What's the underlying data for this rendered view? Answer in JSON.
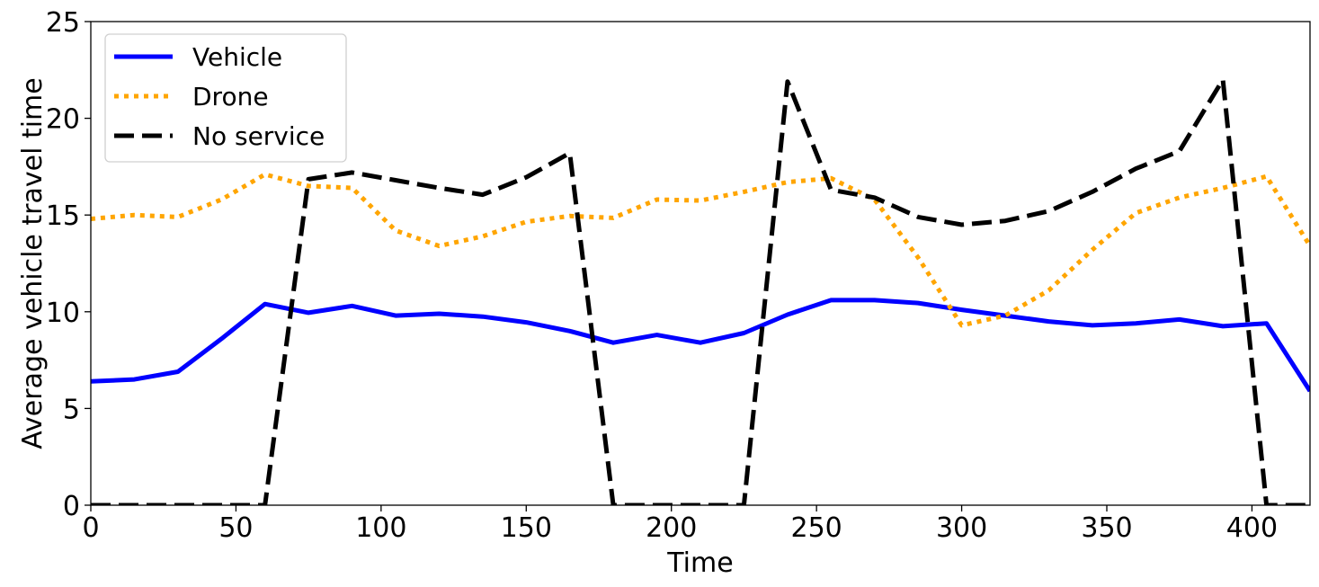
{
  "chart_data": {
    "type": "line",
    "title": "",
    "xlabel": "Time",
    "ylabel": "Average vehicle travel time",
    "xlim": [
      0,
      420
    ],
    "ylim": [
      0,
      25
    ],
    "xticks": [
      0,
      50,
      100,
      150,
      200,
      250,
      300,
      350,
      400
    ],
    "yticks": [
      0,
      5,
      10,
      15,
      20,
      25
    ],
    "grid": false,
    "legend_position": "top-left",
    "x": [
      0,
      15,
      30,
      45,
      60,
      75,
      90,
      105,
      120,
      135,
      150,
      165,
      180,
      195,
      210,
      225,
      240,
      255,
      270,
      285,
      300,
      315,
      330,
      345,
      360,
      375,
      390,
      405,
      420
    ],
    "series": [
      {
        "name": "Vehicle",
        "color": "#0000ff",
        "style": "solid",
        "values": [
          6.4,
          6.5,
          6.9,
          8.6,
          10.4,
          9.95,
          10.3,
          9.8,
          9.9,
          9.75,
          9.45,
          9.0,
          8.4,
          8.8,
          8.4,
          8.9,
          9.85,
          10.6,
          10.6,
          10.45,
          10.1,
          9.8,
          9.5,
          9.3,
          9.4,
          9.6,
          9.25,
          9.4,
          5.9
        ]
      },
      {
        "name": "Drone",
        "color": "#ffa500",
        "style": "dotted",
        "values": [
          14.8,
          15.0,
          14.9,
          15.8,
          17.1,
          16.5,
          16.4,
          14.2,
          13.4,
          13.9,
          14.65,
          14.95,
          14.85,
          15.8,
          15.75,
          16.2,
          16.7,
          16.9,
          15.8,
          12.8,
          9.3,
          9.8,
          11.1,
          13.2,
          15.1,
          15.9,
          16.4,
          17.0,
          13.4
        ]
      },
      {
        "name": "No service",
        "color": "#000000",
        "style": "dashed",
        "values": [
          0,
          0,
          0,
          0,
          0,
          16.85,
          17.2,
          16.8,
          16.4,
          16.05,
          16.95,
          18.2,
          0,
          0,
          0,
          0,
          21.9,
          16.3,
          15.9,
          14.9,
          14.5,
          14.7,
          15.2,
          16.2,
          17.4,
          18.3,
          22.0,
          0,
          0
        ]
      }
    ]
  }
}
